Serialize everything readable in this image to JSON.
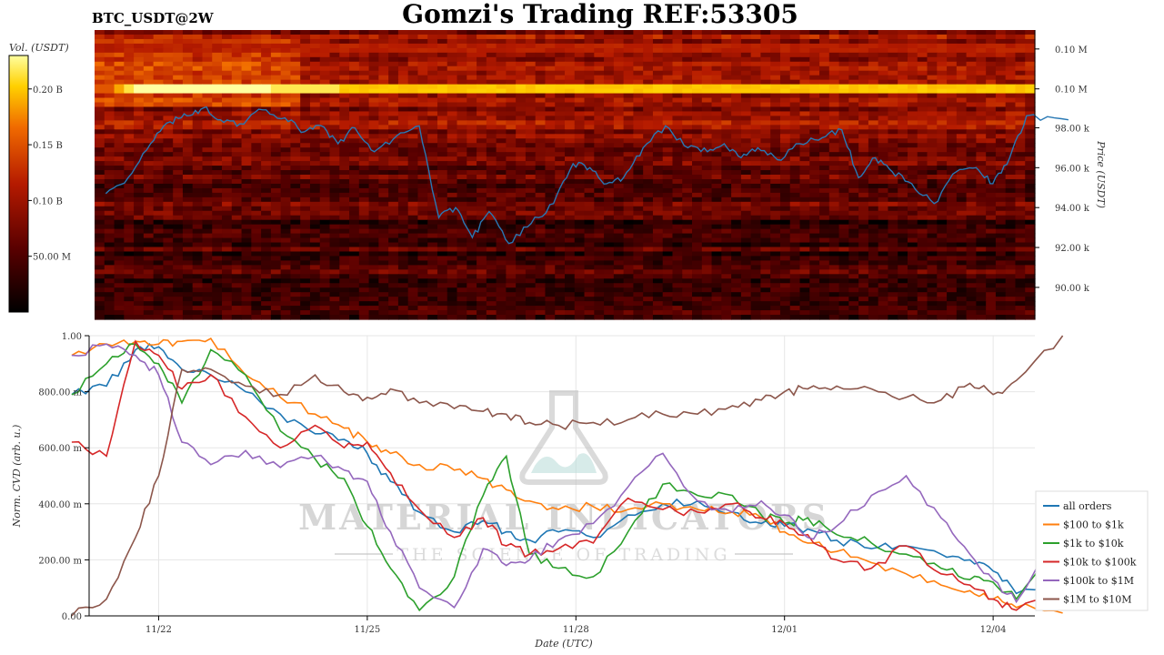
{
  "header": {
    "symbol": "BTC_USDT@2W",
    "title": "Gomzi's Trading REF:53305"
  },
  "watermark": {
    "brand": "MATERIAL INDICATORS",
    "tagline": "THE SCIENCE OF TRADING",
    "icon": "flask-icon"
  },
  "chart_data": [
    {
      "type": "heatmap",
      "colorbar": {
        "label": "Vol. (USDT)",
        "ticks": [
          "0.20 B",
          "0.15 B",
          "0.10 B",
          "50.00 M"
        ],
        "tick_values": [
          200000000,
          150000000,
          100000000,
          50000000
        ],
        "range": [
          0,
          230000000
        ],
        "colormap": [
          "#000000",
          "#5a0000",
          "#b51a00",
          "#f06a00",
          "#ffd000",
          "#ffffa0"
        ]
      },
      "y_axis": {
        "label": "Price (USDT)",
        "ticks": [
          "0.10 M",
          "0.10 M",
          "98.00 k",
          "96.00 k",
          "94.00 k",
          "92.00 k",
          "90.00 k"
        ],
        "tick_values": [
          101950,
          99950,
          98000,
          96000,
          94000,
          92000,
          90000
        ],
        "range": [
          88400,
          102900
        ]
      },
      "x_range": [
        "11/21",
        "12/05"
      ],
      "hot_bands": [
        {
          "price": 99950,
          "volume": 140000000,
          "note": "white / yellow / orange resistance band"
        },
        {
          "price": 101950,
          "volume": 60000000
        }
      ],
      "price_series": {
        "name": "",
        "color": "#2878b4",
        "x": [
          "11/21",
          "11/21",
          "11/21",
          "11/22",
          "11/22",
          "11/22",
          "11/22",
          "11/23",
          "11/23",
          "11/23",
          "11/24",
          "11/24",
          "11/24",
          "11/24",
          "11/25",
          "11/25",
          "11/25",
          "11/26",
          "11/26",
          "11/26",
          "11/26",
          "11/27",
          "11/27",
          "11/27",
          "11/28",
          "11/28",
          "11/28",
          "11/28",
          "11/29",
          "11/29",
          "11/29",
          "11/30",
          "11/30",
          "11/30",
          "11/30",
          "12/01",
          "12/01",
          "12/01",
          "12/02",
          "12/02",
          "12/02",
          "12/02",
          "12/03",
          "12/03",
          "12/03",
          "12/04",
          "12/04",
          "12/04",
          "12/04",
          "12/05"
        ],
        "y": [
          94700,
          95500,
          97200,
          98300,
          98600,
          99000,
          98400,
          98200,
          98900,
          98500,
          97800,
          98100,
          97200,
          98000,
          96800,
          97600,
          98100,
          93500,
          94000,
          92500,
          93800,
          92200,
          93200,
          94200,
          96200,
          96000,
          95200,
          95500,
          97000,
          98100,
          97000,
          96800,
          97200,
          96500,
          97000,
          96400,
          97200,
          97500,
          97900,
          95500,
          96500,
          95800,
          95200,
          94200,
          95800,
          96000,
          95200,
          96500,
          98600,
          98400
        ]
      }
    },
    {
      "type": "line",
      "ylabel": "Norm. CVD (arb. u.)",
      "xlabel": "Date (UTC)",
      "ylim": [
        0,
        1
      ],
      "yticks": [
        "0.00",
        "200.00 m",
        "400.00 m",
        "600.00 m",
        "800.00 m",
        "1.00"
      ],
      "ytick_values": [
        0,
        0.2,
        0.4,
        0.6,
        0.8,
        1.0
      ],
      "xticks": [
        "11/22",
        "11/25",
        "11/28",
        "12/01",
        "12/04"
      ],
      "x": [
        "11/21",
        "11/21",
        "11/22",
        "11/22",
        "11/22",
        "11/23",
        "11/23",
        "11/24",
        "11/24",
        "11/25",
        "11/25",
        "11/25",
        "11/26",
        "11/26",
        "11/27",
        "11/27",
        "11/27",
        "11/28",
        "11/28",
        "11/29",
        "11/29",
        "11/30",
        "11/30",
        "12/01",
        "12/01",
        "12/01",
        "12/02",
        "12/02",
        "12/03",
        "12/03",
        "12/04",
        "12/04",
        "12/04",
        "12/05"
      ],
      "legend_position": "bottom-right",
      "series": [
        {
          "name": "all orders",
          "color": "#1f77b4",
          "values": [
            0.79,
            0.82,
            0.95,
            0.96,
            0.88,
            0.86,
            0.8,
            0.72,
            0.65,
            0.63,
            0.58,
            0.48,
            0.37,
            0.3,
            0.34,
            0.3,
            0.27,
            0.3,
            0.28,
            0.36,
            0.4,
            0.41,
            0.37,
            0.33,
            0.32,
            0.31,
            0.27,
            0.24,
            0.25,
            0.22,
            0.2,
            0.16,
            0.08,
            0.14
          ]
        },
        {
          "name": "$100 to $1k",
          "color": "#ff7f0e",
          "values": [
            0.93,
            0.97,
            0.98,
            0.97,
            0.98,
            0.99,
            0.86,
            0.78,
            0.72,
            0.67,
            0.62,
            0.58,
            0.54,
            0.52,
            0.49,
            0.45,
            0.41,
            0.38,
            0.39,
            0.38,
            0.4,
            0.38,
            0.37,
            0.35,
            0.3,
            0.26,
            0.23,
            0.19,
            0.15,
            0.11,
            0.09,
            0.06,
            0.03,
            0.01
          ]
        },
        {
          "name": "$1k to $10k",
          "color": "#2ca02c",
          "values": [
            0.79,
            0.9,
            0.97,
            0.9,
            0.76,
            0.95,
            0.86,
            0.66,
            0.56,
            0.49,
            0.32,
            0.17,
            0.02,
            0.14,
            0.43,
            0.57,
            0.22,
            0.17,
            0.14,
            0.3,
            0.47,
            0.43,
            0.43,
            0.36,
            0.33,
            0.35,
            0.29,
            0.26,
            0.22,
            0.17,
            0.13,
            0.12,
            0.06,
            0.29
          ]
        },
        {
          "name": "$10k to $100k",
          "color": "#d62728",
          "values": [
            0.62,
            0.57,
            0.98,
            0.93,
            0.81,
            0.86,
            0.71,
            0.6,
            0.68,
            0.6,
            0.62,
            0.51,
            0.38,
            0.28,
            0.35,
            0.25,
            0.22,
            0.24,
            0.26,
            0.42,
            0.38,
            0.37,
            0.4,
            0.35,
            0.33,
            0.29,
            0.2,
            0.17,
            0.25,
            0.15,
            0.11,
            0.06,
            0.02,
            0.08
          ]
        },
        {
          "name": "$100k to $1M",
          "color": "#9467bd",
          "values": [
            0.93,
            0.97,
            0.93,
            0.86,
            0.62,
            0.54,
            0.59,
            0.53,
            0.57,
            0.52,
            0.48,
            0.3,
            0.1,
            0.03,
            0.24,
            0.18,
            0.2,
            0.27,
            0.33,
            0.46,
            0.58,
            0.41,
            0.37,
            0.41,
            0.36,
            0.28,
            0.32,
            0.43,
            0.5,
            0.35,
            0.22,
            0.13,
            0.05,
            0.36
          ]
        },
        {
          "name": "$1M to $10M",
          "color": "#8c564b",
          "values": [
            0.0,
            0.06,
            0.28,
            0.5,
            0.88,
            0.88,
            0.82,
            0.79,
            0.86,
            0.8,
            0.78,
            0.81,
            0.76,
            0.74,
            0.73,
            0.72,
            0.69,
            0.68,
            0.69,
            0.7,
            0.72,
            0.72,
            0.75,
            0.77,
            0.8,
            0.81,
            0.82,
            0.81,
            0.78,
            0.77,
            0.83,
            0.79,
            0.84,
            1.0
          ]
        }
      ]
    }
  ]
}
